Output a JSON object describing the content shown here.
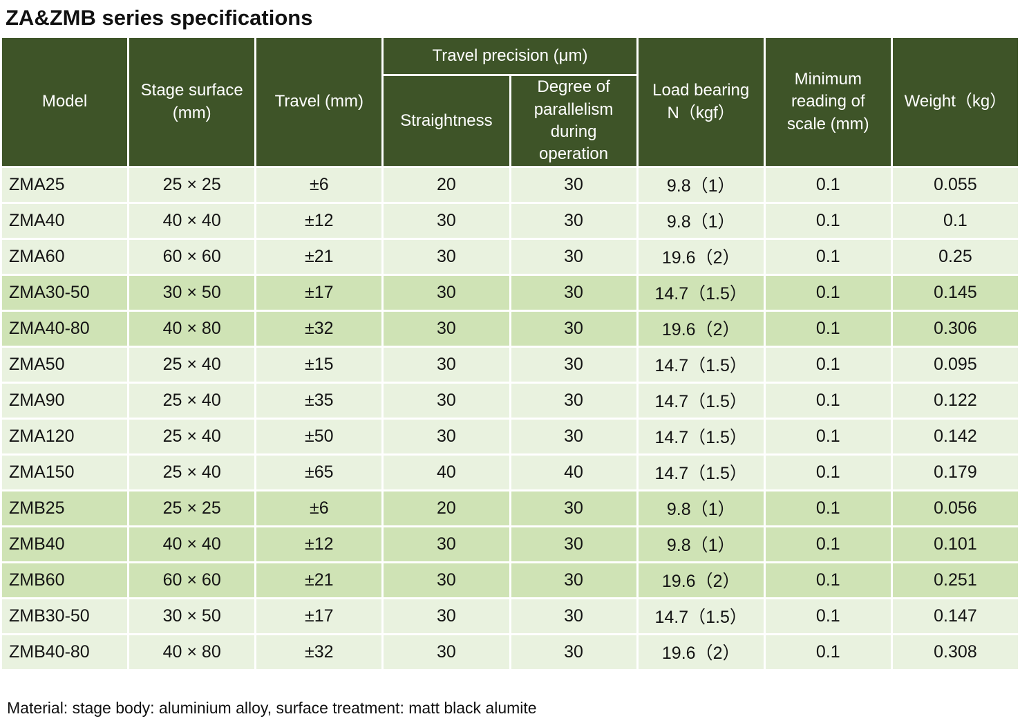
{
  "title": "ZA&ZMB series specifications",
  "colors": {
    "header_bg": "#3e5428",
    "row_light": "#e9f2df",
    "row_dark": "#cfe3b5",
    "grid": "#ffffff",
    "header_text": "#ffffff"
  },
  "table": {
    "headers": {
      "model": "Model",
      "stage_surface": "Stage surface\n(mm)",
      "travel": "Travel (mm)",
      "travel_precision_group": "Travel precision (μm)",
      "straightness": "Straightness",
      "parallelism": "Degree of\nparallelism\nduring\noperation",
      "load_bearing": "Load bearing\nN（kgf）",
      "min_reading": "Minimum\nreading of\nscale (mm)",
      "weight": "Weight（kg）"
    },
    "rows": [
      {
        "model": "ZMA25",
        "surface": "25 × 25",
        "travel": "±6",
        "straightness": "20",
        "parallelism": "30",
        "load": "9.8（1）",
        "reading": "0.1",
        "weight": "0.055",
        "shade": "light"
      },
      {
        "model": "ZMA40",
        "surface": "40 × 40",
        "travel": "±12",
        "straightness": "30",
        "parallelism": "30",
        "load": "9.8（1）",
        "reading": "0.1",
        "weight": "0.1",
        "shade": "light"
      },
      {
        "model": "ZMA60",
        "surface": "60 × 60",
        "travel": "±21",
        "straightness": "30",
        "parallelism": "30",
        "load": "19.6（2）",
        "reading": "0.1",
        "weight": "0.25",
        "shade": "light"
      },
      {
        "model": "ZMA30-50",
        "surface": "30 × 50",
        "travel": "±17",
        "straightness": "30",
        "parallelism": "30",
        "load": "14.7（1.5）",
        "reading": "0.1",
        "weight": "0.145",
        "shade": "dark"
      },
      {
        "model": "ZMA40-80",
        "surface": "40 × 80",
        "travel": "±32",
        "straightness": "30",
        "parallelism": "30",
        "load": "19.6（2）",
        "reading": "0.1",
        "weight": "0.306",
        "shade": "dark"
      },
      {
        "model": "ZMA50",
        "surface": "25 × 40",
        "travel": "±15",
        "straightness": "30",
        "parallelism": "30",
        "load": "14.7（1.5）",
        "reading": "0.1",
        "weight": "0.095",
        "shade": "light"
      },
      {
        "model": "ZMA90",
        "surface": "25 × 40",
        "travel": "±35",
        "straightness": "30",
        "parallelism": "30",
        "load": "14.7（1.5）",
        "reading": "0.1",
        "weight": "0.122",
        "shade": "light"
      },
      {
        "model": "ZMA120",
        "surface": "25 × 40",
        "travel": "±50",
        "straightness": "30",
        "parallelism": "30",
        "load": "14.7（1.5）",
        "reading": "0.1",
        "weight": "0.142",
        "shade": "light"
      },
      {
        "model": "ZMA150",
        "surface": "25 × 40",
        "travel": "±65",
        "straightness": "40",
        "parallelism": "40",
        "load": "14.7（1.5）",
        "reading": "0.1",
        "weight": "0.179",
        "shade": "light"
      },
      {
        "model": "ZMB25",
        "surface": "25 × 25",
        "travel": "±6",
        "straightness": "20",
        "parallelism": "30",
        "load": "9.8（1）",
        "reading": "0.1",
        "weight": "0.056",
        "shade": "dark"
      },
      {
        "model": "ZMB40",
        "surface": "40 × 40",
        "travel": "±12",
        "straightness": "30",
        "parallelism": "30",
        "load": "9.8（1）",
        "reading": "0.1",
        "weight": "0.101",
        "shade": "dark"
      },
      {
        "model": "ZMB60",
        "surface": "60 × 60",
        "travel": "±21",
        "straightness": "30",
        "parallelism": "30",
        "load": "19.6（2）",
        "reading": "0.1",
        "weight": "0.251",
        "shade": "dark"
      },
      {
        "model": "ZMB30-50",
        "surface": "30 × 50",
        "travel": "±17",
        "straightness": "30",
        "parallelism": "30",
        "load": "14.7（1.5）",
        "reading": "0.1",
        "weight": "0.147",
        "shade": "light"
      },
      {
        "model": "ZMB40-80",
        "surface": "40 × 80",
        "travel": "±32",
        "straightness": "30",
        "parallelism": "30",
        "load": "19.6（2）",
        "reading": "0.1",
        "weight": "0.308",
        "shade": "light"
      }
    ]
  },
  "footer_note": "Material: stage body: aluminium alloy, surface treatment: matt black alumite"
}
